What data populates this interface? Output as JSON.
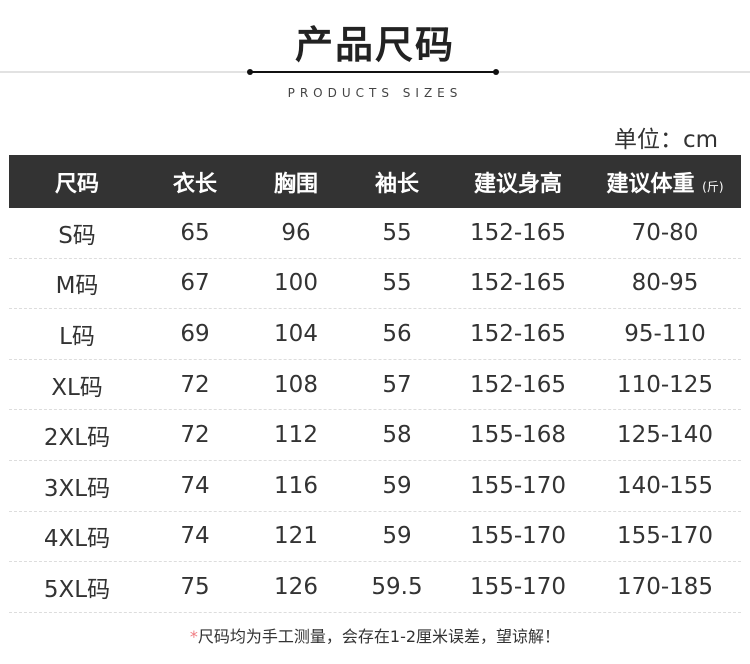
{
  "title": "产品尺码",
  "subtitle": "PRODUCTS SIZES",
  "unit": "单位：cm",
  "headers": [
    "尺码",
    "衣长",
    "胸围",
    "袖长",
    "建议身高",
    "建议体重"
  ],
  "weight_unit": "(斤)",
  "rows": [
    [
      "S码",
      "65",
      "96",
      "55",
      "152-165",
      "70-80"
    ],
    [
      "M码",
      "67",
      "100",
      "55",
      "152-165",
      "80-95"
    ],
    [
      "L码",
      "69",
      "104",
      "56",
      "152-165",
      "95-110"
    ],
    [
      "XL码",
      "72",
      "108",
      "57",
      "152-165",
      "110-125"
    ],
    [
      "2XL码",
      "72",
      "112",
      "58",
      "155-168",
      "125-140"
    ],
    [
      "3XL码",
      "74",
      "116",
      "59",
      "155-170",
      "140-155"
    ],
    [
      "4XL码",
      "74",
      "121",
      "59",
      "155-170",
      "155-170"
    ],
    [
      "5XL码",
      "75",
      "126",
      "59.5",
      "155-170",
      "170-185"
    ]
  ],
  "note_star": "*",
  "note": "尺码均为手工测量，会存在1-2厘米误差，望谅解！",
  "colors": {
    "header_bg": "#333333",
    "star": "#f07a80"
  }
}
